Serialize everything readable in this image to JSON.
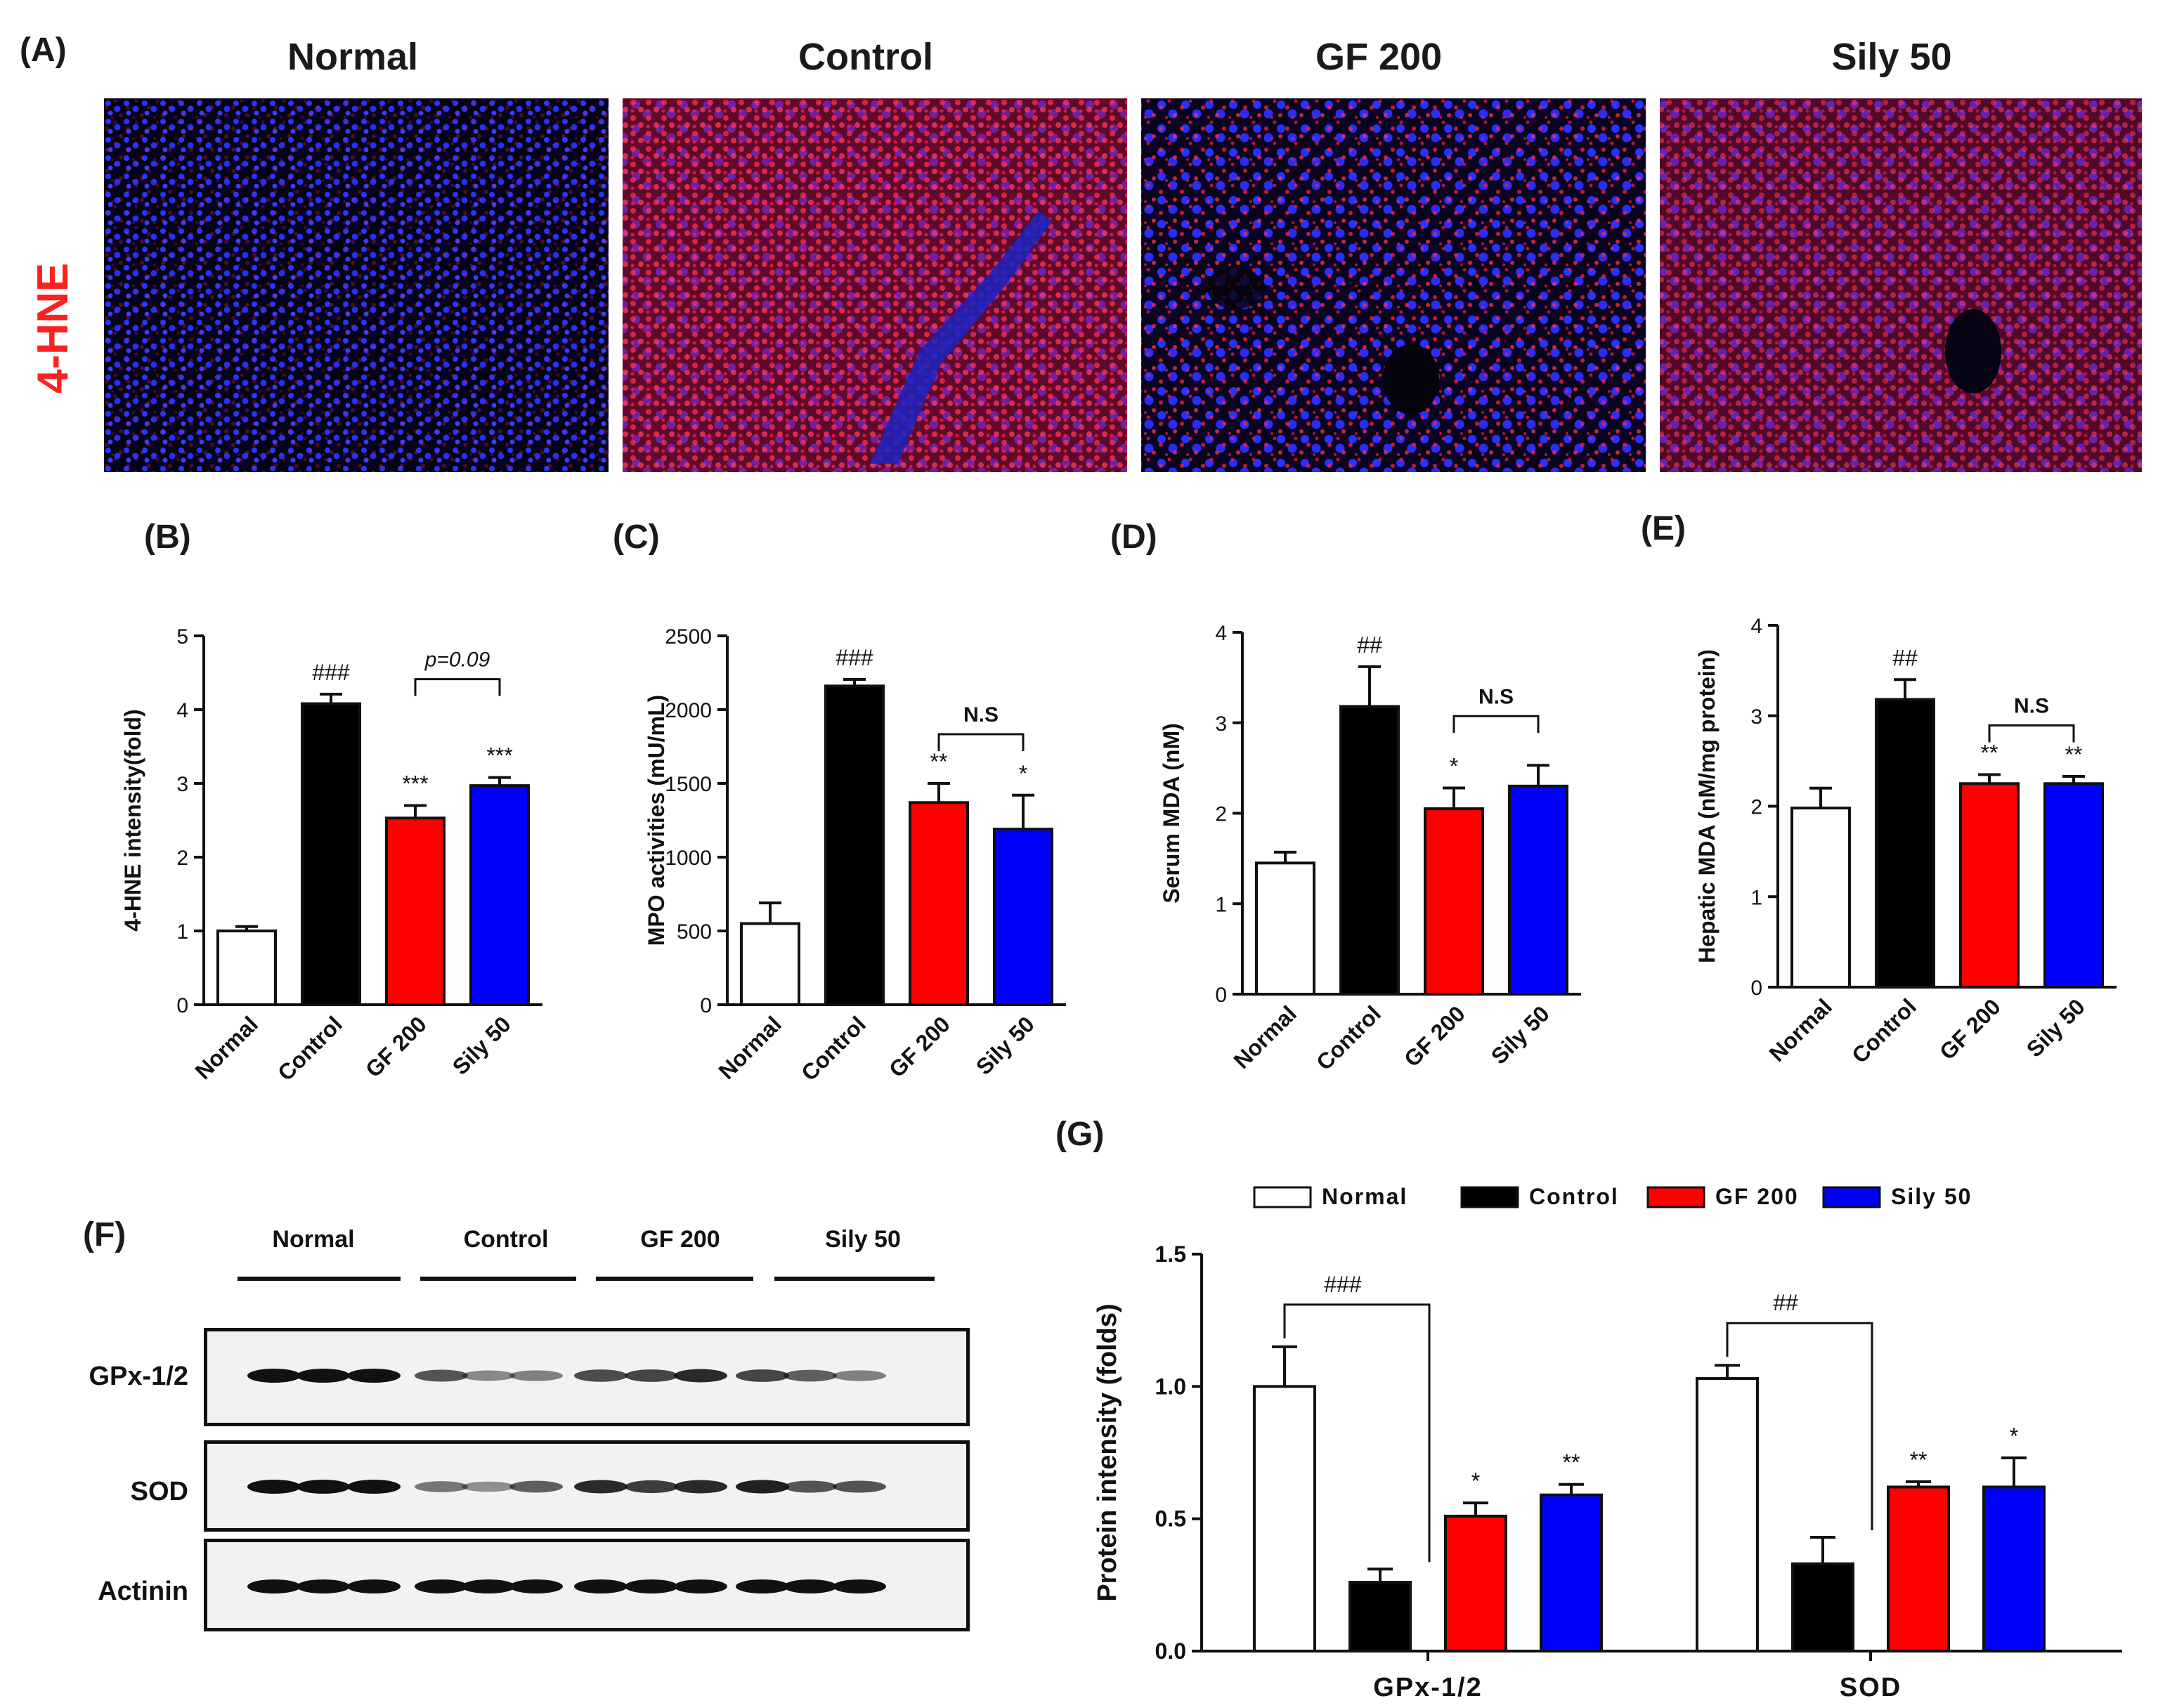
{
  "figure": {
    "panel_a": {
      "letter": "(A)",
      "row_label": "4-HNE",
      "groups": [
        "Normal",
        "Control",
        "GF 200",
        "Sily 50"
      ]
    },
    "panel_f": {
      "letter": "(F)",
      "groups": [
        "Normal",
        "Control",
        "GF 200",
        "Sily 50"
      ],
      "rows": [
        "GPx-1/2",
        "SOD",
        "Actinin"
      ]
    },
    "colors": {
      "normal": "#ffffff",
      "control": "#000000",
      "gf200": "#ff0000",
      "sily50": "#0000ff",
      "red_label": "#ff2020"
    }
  },
  "chart_data": [
    {
      "panel": "(B)",
      "type": "bar",
      "categories": [
        "Normal",
        "Control",
        "GF 200",
        "Sily 50"
      ],
      "values": [
        1.0,
        4.08,
        2.53,
        2.97
      ],
      "errors": [
        0.06,
        0.13,
        0.17,
        0.11
      ],
      "ylabel": "4-HNE intensity(fold)",
      "ylim": [
        0,
        5
      ],
      "yticks": [
        "0",
        "1",
        "2",
        "3",
        "4",
        "5"
      ],
      "sig": [
        "",
        "###",
        "***",
        "***"
      ],
      "bracket": {
        "from": 2,
        "to": 3,
        "label": "p=0.09"
      }
    },
    {
      "panel": "(C)",
      "type": "bar",
      "categories": [
        "Normal",
        "Control",
        "GF 200",
        "Sily 50"
      ],
      "values": [
        550,
        2160,
        1370,
        1190
      ],
      "errors": [
        140,
        45,
        130,
        230
      ],
      "ylabel": "MPO activities (mU/mL)",
      "ylim": [
        0,
        2500
      ],
      "yticks": [
        "0",
        "500",
        "1000",
        "1500",
        "2000",
        "2500"
      ],
      "sig": [
        "",
        "###",
        "**",
        "*"
      ],
      "bracket": {
        "from": 2,
        "to": 3,
        "label": "N.S"
      }
    },
    {
      "panel": "(D)",
      "type": "bar",
      "categories": [
        "Normal",
        "Control",
        "GF 200",
        "Sily 50"
      ],
      "values": [
        1.45,
        3.18,
        2.05,
        2.3
      ],
      "errors": [
        0.12,
        0.44,
        0.23,
        0.23
      ],
      "ylabel": "Serum MDA (nM)",
      "ylim": [
        0,
        4
      ],
      "yticks": [
        "0",
        "1",
        "2",
        "3",
        "4"
      ],
      "sig": [
        "",
        "##",
        "*",
        ""
      ],
      "bracket": {
        "from": 2,
        "to": 3,
        "label": "N.S"
      }
    },
    {
      "panel": "(E)",
      "type": "bar",
      "categories": [
        "Normal",
        "Control",
        "GF 200",
        "Sily 50"
      ],
      "values": [
        1.98,
        3.18,
        2.25,
        2.25
      ],
      "errors": [
        0.22,
        0.22,
        0.1,
        0.08
      ],
      "ylabel": "Hepatic MDA (nM/mg protein)",
      "ylim": [
        0,
        4
      ],
      "yticks": [
        "0",
        "1",
        "2",
        "3",
        "4"
      ],
      "sig": [
        "",
        "##",
        "**",
        "**"
      ],
      "bracket": {
        "from": 2,
        "to": 3,
        "label": "N.S"
      }
    },
    {
      "panel": "(G)",
      "type": "bar",
      "categories": [
        "GPx-1/2",
        "SOD"
      ],
      "series": [
        {
          "name": "Normal",
          "values": [
            1.0,
            1.03
          ],
          "errors": [
            0.15,
            0.05
          ],
          "sig": [
            "",
            ""
          ]
        },
        {
          "name": "Control",
          "values": [
            0.26,
            0.33
          ],
          "errors": [
            0.05,
            0.1
          ],
          "sig": [
            "",
            ""
          ]
        },
        {
          "name": "GF 200",
          "values": [
            0.51,
            0.62
          ],
          "errors": [
            0.05,
            0.02
          ],
          "sig": [
            "*",
            "**"
          ]
        },
        {
          "name": "Sily 50",
          "values": [
            0.59,
            0.62
          ],
          "errors": [
            0.04,
            0.11
          ],
          "sig": [
            "**",
            "*"
          ]
        }
      ],
      "ylabel": "Protein intensity (folds)",
      "ylim": [
        0,
        1.5
      ],
      "yticks": [
        "0.0",
        "0.5",
        "1.0",
        "1.5"
      ],
      "brackets": [
        "###",
        "##"
      ],
      "legend": "top"
    }
  ]
}
